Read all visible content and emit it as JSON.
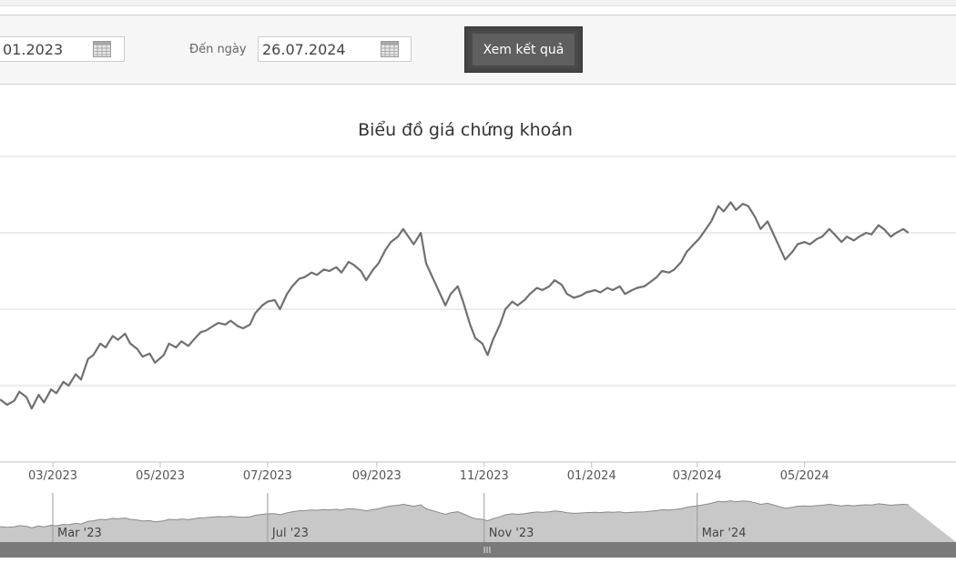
{
  "filter": {
    "from_value": "01.2023",
    "to_label": "Đến ngày",
    "to_value": "26.07.2024",
    "submit_label": "Xem kết quả"
  },
  "chart_data": {
    "type": "line",
    "title": "Biểu đồ giá chứng khoán",
    "xlabel": "",
    "ylabel": "",
    "x_tick_labels": [
      "03/2023",
      "05/2023",
      "07/2023",
      "09/2023",
      "11/2023",
      "01/2024",
      "03/2024",
      "05/2024"
    ],
    "x_range": [
      "2023-01-30",
      "2024-07-26"
    ],
    "grid": true,
    "series": [
      {
        "points": [
          [
            "2023-01-30",
            0.82
          ],
          [
            "2023-02-03",
            0.75
          ],
          [
            "2023-02-07",
            0.8
          ],
          [
            "2023-02-10",
            0.92
          ],
          [
            "2023-02-14",
            0.85
          ],
          [
            "2023-02-17",
            0.7
          ],
          [
            "2023-02-21",
            0.88
          ],
          [
            "2023-02-24",
            0.78
          ],
          [
            "2023-02-28",
            0.95
          ],
          [
            "2023-03-03",
            0.9
          ],
          [
            "2023-03-07",
            1.05
          ],
          [
            "2023-03-10",
            1.0
          ],
          [
            "2023-03-14",
            1.15
          ],
          [
            "2023-03-17",
            1.08
          ],
          [
            "2023-03-21",
            1.35
          ],
          [
            "2023-03-24",
            1.4
          ],
          [
            "2023-03-28",
            1.55
          ],
          [
            "2023-03-31",
            1.5
          ],
          [
            "2023-04-04",
            1.65
          ],
          [
            "2023-04-07",
            1.6
          ],
          [
            "2023-04-11",
            1.68
          ],
          [
            "2023-04-14",
            1.55
          ],
          [
            "2023-04-18",
            1.48
          ],
          [
            "2023-04-21",
            1.38
          ],
          [
            "2023-04-25",
            1.42
          ],
          [
            "2023-04-28",
            1.3
          ],
          [
            "2023-05-03",
            1.4
          ],
          [
            "2023-05-06",
            1.55
          ],
          [
            "2023-05-10",
            1.5
          ],
          [
            "2023-05-13",
            1.58
          ],
          [
            "2023-05-17",
            1.52
          ],
          [
            "2023-05-20",
            1.6
          ],
          [
            "2023-05-24",
            1.7
          ],
          [
            "2023-05-27",
            1.72
          ],
          [
            "2023-05-31",
            1.78
          ],
          [
            "2023-06-03",
            1.82
          ],
          [
            "2023-06-07",
            1.8
          ],
          [
            "2023-06-10",
            1.85
          ],
          [
            "2023-06-14",
            1.78
          ],
          [
            "2023-06-17",
            1.75
          ],
          [
            "2023-06-21",
            1.8
          ],
          [
            "2023-06-24",
            1.95
          ],
          [
            "2023-06-28",
            2.05
          ],
          [
            "2023-07-01",
            2.1
          ],
          [
            "2023-07-05",
            2.12
          ],
          [
            "2023-07-08",
            2.0
          ],
          [
            "2023-07-12",
            2.2
          ],
          [
            "2023-07-15",
            2.3
          ],
          [
            "2023-07-19",
            2.4
          ],
          [
            "2023-07-22",
            2.42
          ],
          [
            "2023-07-26",
            2.48
          ],
          [
            "2023-07-29",
            2.45
          ],
          [
            "2023-08-02",
            2.52
          ],
          [
            "2023-08-05",
            2.5
          ],
          [
            "2023-08-09",
            2.55
          ],
          [
            "2023-08-12",
            2.48
          ],
          [
            "2023-08-16",
            2.62
          ],
          [
            "2023-08-19",
            2.58
          ],
          [
            "2023-08-23",
            2.5
          ],
          [
            "2023-08-26",
            2.38
          ],
          [
            "2023-08-30",
            2.52
          ],
          [
            "2023-09-02",
            2.6
          ],
          [
            "2023-09-06",
            2.78
          ],
          [
            "2023-09-09",
            2.88
          ],
          [
            "2023-09-13",
            2.95
          ],
          [
            "2023-09-16",
            3.05
          ],
          [
            "2023-09-19",
            2.95
          ],
          [
            "2023-09-22",
            2.85
          ],
          [
            "2023-09-26",
            3.0
          ],
          [
            "2023-09-29",
            2.6
          ],
          [
            "2023-10-03",
            2.4
          ],
          [
            "2023-10-06",
            2.25
          ],
          [
            "2023-10-10",
            2.05
          ],
          [
            "2023-10-13",
            2.2
          ],
          [
            "2023-10-17",
            2.3
          ],
          [
            "2023-10-20",
            2.1
          ],
          [
            "2023-10-24",
            1.8
          ],
          [
            "2023-10-27",
            1.62
          ],
          [
            "2023-10-31",
            1.55
          ],
          [
            "2023-11-03",
            1.4
          ],
          [
            "2023-11-06",
            1.6
          ],
          [
            "2023-11-10",
            1.8
          ],
          [
            "2023-11-13",
            2.0
          ],
          [
            "2023-11-17",
            2.1
          ],
          [
            "2023-11-20",
            2.05
          ],
          [
            "2023-11-24",
            2.12
          ],
          [
            "2023-11-27",
            2.2
          ],
          [
            "2023-12-01",
            2.28
          ],
          [
            "2023-12-04",
            2.25
          ],
          [
            "2023-12-08",
            2.3
          ],
          [
            "2023-12-11",
            2.38
          ],
          [
            "2023-12-15",
            2.32
          ],
          [
            "2023-12-18",
            2.2
          ],
          [
            "2023-12-22",
            2.15
          ],
          [
            "2023-12-26",
            2.18
          ],
          [
            "2023-12-29",
            2.22
          ],
          [
            "2024-01-03",
            2.25
          ],
          [
            "2024-01-06",
            2.22
          ],
          [
            "2024-01-10",
            2.28
          ],
          [
            "2024-01-13",
            2.25
          ],
          [
            "2024-01-17",
            2.3
          ],
          [
            "2024-01-20",
            2.2
          ],
          [
            "2024-01-24",
            2.25
          ],
          [
            "2024-01-27",
            2.28
          ],
          [
            "2024-01-31",
            2.3
          ],
          [
            "2024-02-03",
            2.35
          ],
          [
            "2024-02-07",
            2.42
          ],
          [
            "2024-02-10",
            2.5
          ],
          [
            "2024-02-14",
            2.48
          ],
          [
            "2024-02-17",
            2.52
          ],
          [
            "2024-02-21",
            2.62
          ],
          [
            "2024-02-24",
            2.75
          ],
          [
            "2024-02-28",
            2.85
          ],
          [
            "2024-03-02",
            2.92
          ],
          [
            "2024-03-06",
            3.05
          ],
          [
            "2024-03-09",
            3.15
          ],
          [
            "2024-03-13",
            3.35
          ],
          [
            "2024-03-16",
            3.28
          ],
          [
            "2024-03-20",
            3.4
          ],
          [
            "2024-03-23",
            3.3
          ],
          [
            "2024-03-27",
            3.38
          ],
          [
            "2024-03-30",
            3.35
          ],
          [
            "2024-04-03",
            3.2
          ],
          [
            "2024-04-06",
            3.05
          ],
          [
            "2024-04-10",
            3.15
          ],
          [
            "2024-04-13",
            3.0
          ],
          [
            "2024-04-17",
            2.8
          ],
          [
            "2024-04-20",
            2.65
          ],
          [
            "2024-04-24",
            2.75
          ],
          [
            "2024-04-27",
            2.85
          ],
          [
            "2024-05-01",
            2.88
          ],
          [
            "2024-05-04",
            2.85
          ],
          [
            "2024-05-08",
            2.92
          ],
          [
            "2024-05-11",
            2.95
          ],
          [
            "2024-05-15",
            3.05
          ],
          [
            "2024-05-18",
            2.98
          ],
          [
            "2024-05-22",
            2.88
          ],
          [
            "2024-05-25",
            2.95
          ],
          [
            "2024-05-29",
            2.9
          ],
          [
            "2024-06-01",
            2.95
          ],
          [
            "2024-06-05",
            3.0
          ],
          [
            "2024-06-08",
            2.98
          ],
          [
            "2024-06-12",
            3.1
          ],
          [
            "2024-06-15",
            3.05
          ],
          [
            "2024-06-19",
            2.95
          ],
          [
            "2024-06-22",
            3.0
          ],
          [
            "2024-06-26",
            3.05
          ],
          [
            "2024-06-29",
            3.0
          ]
        ]
      }
    ],
    "navigator": {
      "labels": [
        "Mar '23",
        "Jul '23",
        "Nov '23",
        "Mar '24"
      ],
      "scrollbar_grip": "III"
    },
    "colors": {
      "line": "#707070",
      "grid": "#d8d8d8",
      "navigator_fill": "#c8c8c8",
      "navigator_line": "#8a8a8a",
      "scrollbar": "#7a7a7a"
    }
  }
}
